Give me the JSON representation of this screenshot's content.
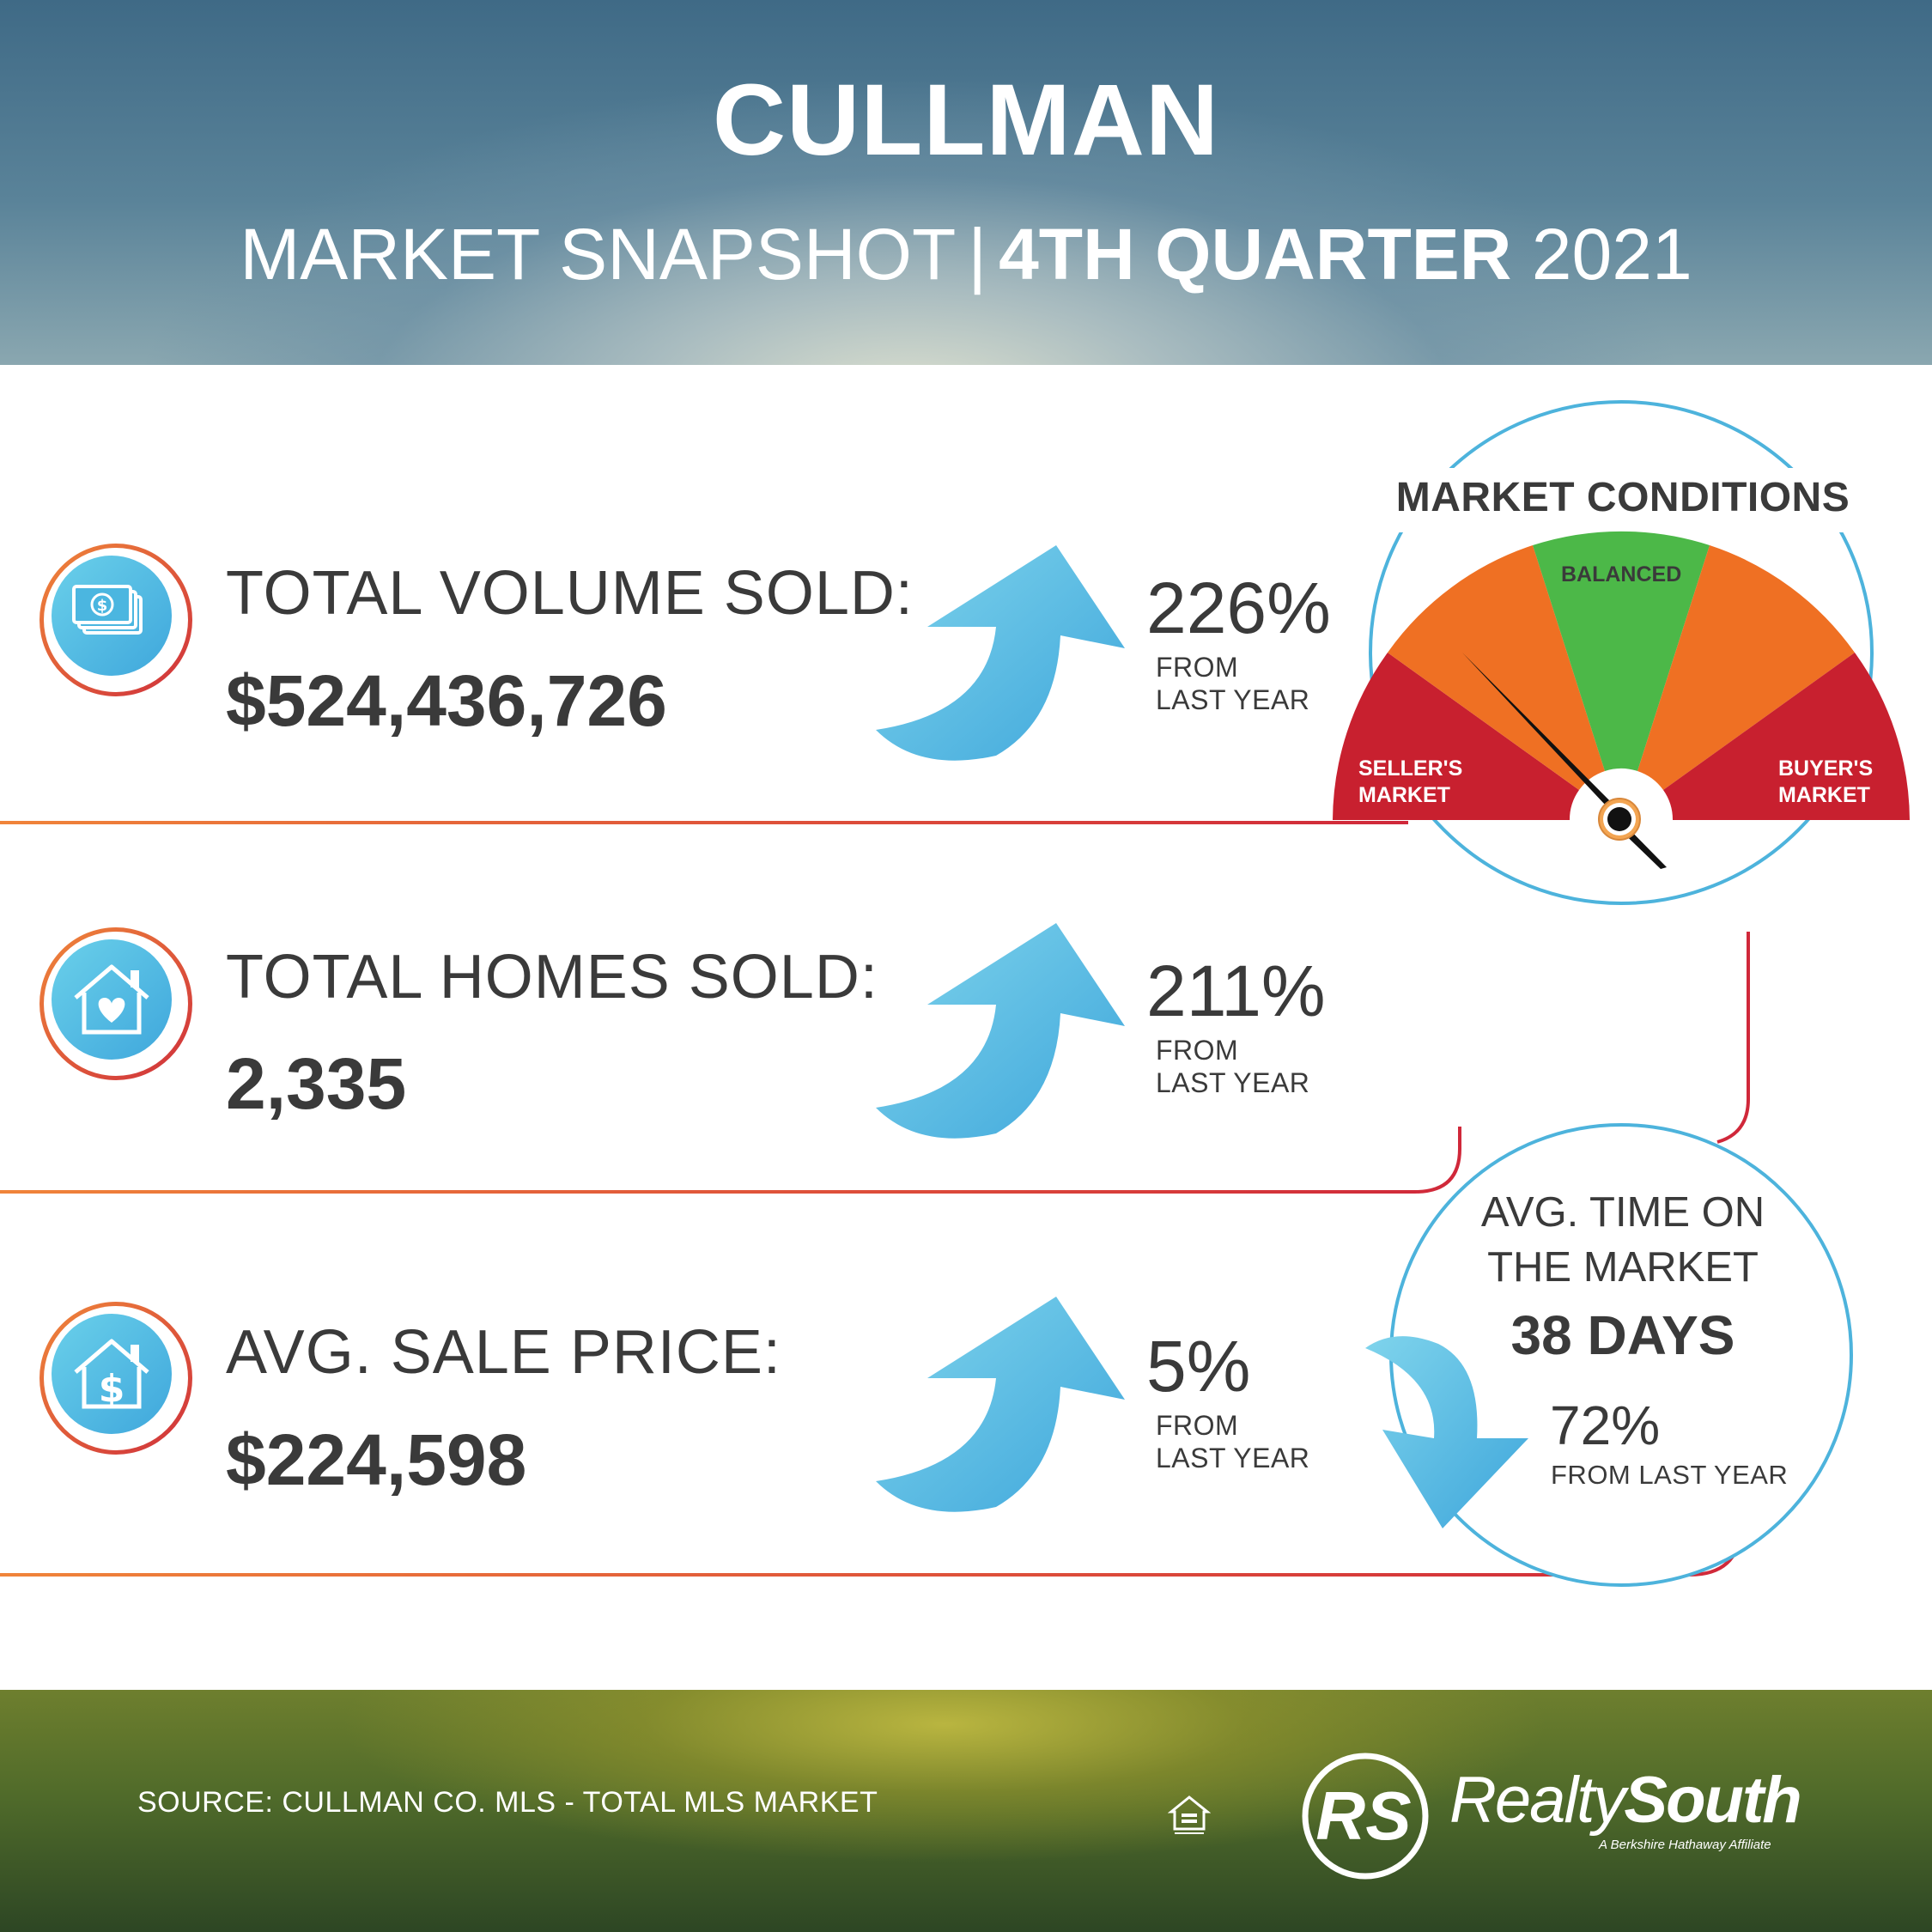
{
  "header": {
    "title": "CULLMAN",
    "subtitle_left": "MARKET SNAPSHOT",
    "subtitle_sep": "|",
    "subtitle_bold": "4TH QUARTER",
    "subtitle_year": "2021"
  },
  "stats": [
    {
      "label": "TOTAL VOLUME SOLD:",
      "value": "$524,436,726",
      "change": "226%",
      "from_line1": "FROM",
      "from_line2": "LAST YEAR",
      "direction": "up",
      "icon": "money-icon"
    },
    {
      "label": "TOTAL HOMES SOLD:",
      "value": "2,335",
      "change": "211%",
      "from_line1": "FROM",
      "from_line2": "LAST YEAR",
      "direction": "up",
      "icon": "house-heart-icon"
    },
    {
      "label": "AVG. SALE PRICE:",
      "value": "$224,598",
      "change": "5%",
      "from_line1": "FROM",
      "from_line2": "LAST YEAR",
      "direction": "up",
      "icon": "house-dollar-icon"
    }
  ],
  "market_conditions": {
    "title": "MARKET CONDITIONS",
    "balanced": "BALANCED",
    "seller_line1": "SELLER'S",
    "seller_line2": "MARKET",
    "buyer_line1": "BUYER'S",
    "buyer_line2": "MARKET",
    "needle_position": "seller-orange (left of balanced)",
    "colors": {
      "red": "#c8202f",
      "orange": "#ef7023",
      "green": "#4cb848"
    }
  },
  "avg_time": {
    "title_line1": "AVG. TIME ON",
    "title_line2": "THE MARKET",
    "days": "38 DAYS",
    "change": "72%",
    "from": "FROM LAST YEAR",
    "direction": "down"
  },
  "footer": {
    "source": "SOURCE: CULLMAN CO. MLS - TOTAL MLS MARKET",
    "logo_initials": "RS",
    "logo_realty": "Realty",
    "logo_south": "South",
    "logo_tagline": "A Berkshire Hathaway Affiliate",
    "equal_housing_text": "EQUAL HOUSING OPPORTUNITY"
  },
  "colors": {
    "accent_blue": "#4db3dc",
    "divider_start": "#f0843a",
    "divider_end": "#d0283a",
    "text": "#3a3a3a"
  }
}
